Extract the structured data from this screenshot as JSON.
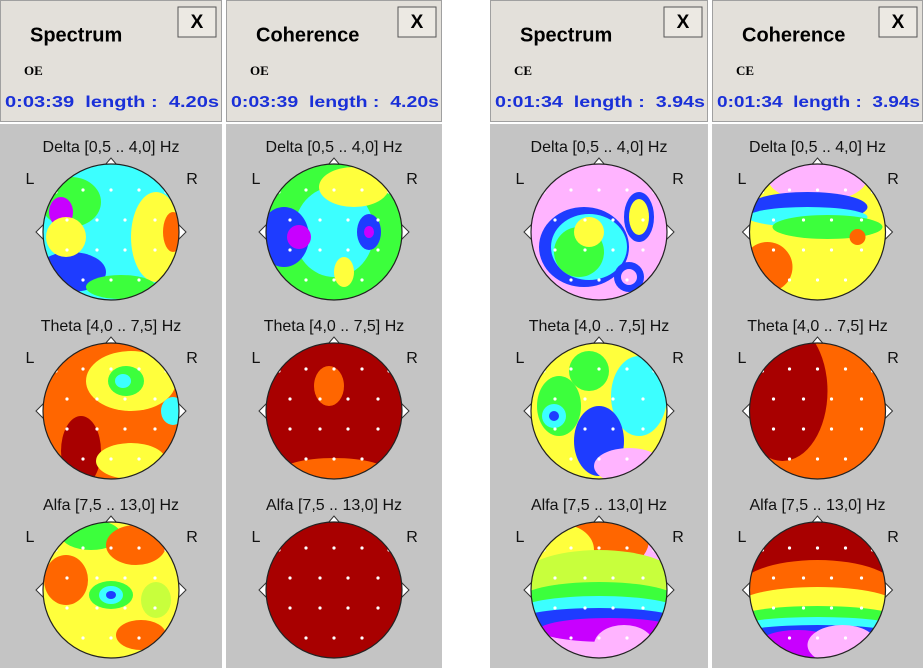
{
  "panels": [
    {
      "title": "Spectrum",
      "close": "X",
      "condition": "OE",
      "info": "0:03:39  length :  4.20s",
      "maps": [
        {
          "label": "Delta [0,5 .. 4,0] Hz"
        },
        {
          "label": "Theta [4,0 .. 7,5] Hz"
        },
        {
          "label": "Alfa [7,5 .. 13,0] Hz"
        }
      ]
    },
    {
      "title": "Coherence",
      "close": "X",
      "condition": "OE",
      "info": "0:03:39  length :  4.20s",
      "maps": [
        {
          "label": "Delta [0,5 .. 4,0] Hz"
        },
        {
          "label": "Theta [4,0 .. 7,5] Hz"
        },
        {
          "label": "Alfa [7,5 .. 13,0] Hz"
        }
      ]
    },
    {
      "title": "Spectrum",
      "close": "X",
      "condition": "CE",
      "info": "0:01:34  length :  3.94s",
      "maps": [
        {
          "label": "Delta [0,5 .. 4,0] Hz"
        },
        {
          "label": "Theta [4,0 .. 7,5] Hz"
        },
        {
          "label": "Alfa [7,5 .. 13,0] Hz"
        }
      ]
    },
    {
      "title": "Coherence",
      "close": "X",
      "condition": "CE",
      "info": "0:01:34  length :  3.94s",
      "maps": [
        {
          "label": "Delta [0,5 .. 4,0] Hz"
        },
        {
          "label": "Theta [4,0 .. 7,5] Hz"
        },
        {
          "label": "Alfa [7,5 .. 13,0] Hz"
        }
      ]
    }
  ],
  "side_labels": {
    "left": "L",
    "right": "R"
  }
}
